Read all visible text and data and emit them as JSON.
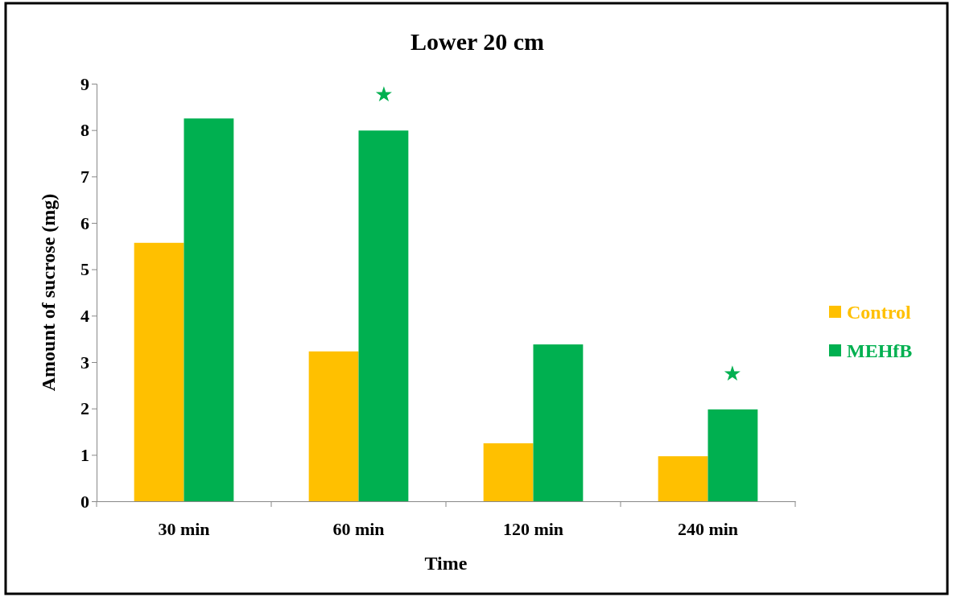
{
  "chart_data": {
    "type": "bar",
    "title": "Lower 20 cm",
    "xlabel": "Time",
    "ylabel": "Amount  of sucrose (mg)",
    "categories": [
      "30 min",
      "60 min",
      "120 min",
      "240 min"
    ],
    "series": [
      {
        "name": "Control",
        "color": "#ffc000",
        "values": [
          5.57,
          3.23,
          1.25,
          0.97
        ]
      },
      {
        "name": "MEHfB",
        "color": "#00b050",
        "values": [
          8.25,
          7.99,
          3.38,
          1.98
        ]
      }
    ],
    "ylim": [
      0,
      9
    ],
    "yticks": [
      0,
      1,
      2,
      3,
      4,
      5,
      6,
      7,
      8,
      9
    ],
    "grid": false,
    "legend": "right",
    "annotations": [
      "★",
      "★"
    ]
  }
}
